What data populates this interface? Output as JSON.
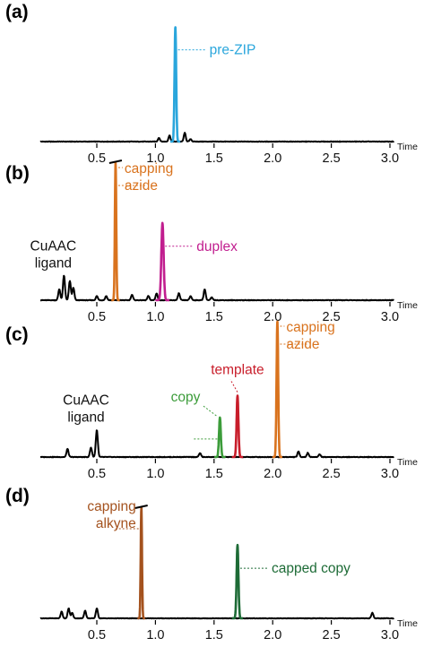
{
  "figure": {
    "x_ticks": [
      0.5,
      1.0,
      1.5,
      2.0,
      2.5,
      3.0
    ],
    "x_axis_label": "Time",
    "colors": {
      "baseline": "#000000",
      "pre_zip": "#2aa6dc",
      "capping_azide": "#d9731e",
      "duplex": "#c11e8f",
      "template": "#c81d2a",
      "copy": "#3c9c3a",
      "capping_alkyne": "#a4521e",
      "capped_copy": "#1d6b36"
    }
  },
  "chart_data": [
    {
      "type": "line",
      "panel": "(a)",
      "xlim": [
        0.0,
        3.05
      ],
      "xlabel": "Time",
      "ticks": [
        "0.5",
        "1.0",
        "1.5",
        "2.0",
        "2.5",
        "3.0"
      ],
      "ylim": [
        0,
        1
      ],
      "peaks": [
        {
          "x": 1.17,
          "height": 0.93,
          "width": 0.018,
          "color": "#2aa6dc",
          "label": "pre-ZIP",
          "label_position": "right"
        }
      ],
      "minor_peaks": [
        [
          1.03,
          0.03
        ],
        [
          1.12,
          0.05
        ],
        [
          1.25,
          0.07
        ],
        [
          1.3,
          0.02
        ]
      ]
    },
    {
      "type": "line",
      "panel": "(b)",
      "xlim": [
        0.0,
        3.05
      ],
      "xlabel": "Time",
      "ticks": [
        "0.5",
        "1.0",
        "1.5",
        "2.0",
        "2.5",
        "3.0"
      ],
      "ylim": [
        0,
        1
      ],
      "peaks": [
        {
          "x": 0.66,
          "height": 1.0,
          "width": 0.015,
          "color": "#d9731e",
          "label": "capping azide",
          "label_position": "right",
          "clipped": true
        },
        {
          "x": 1.06,
          "height": 0.56,
          "width": 0.025,
          "color": "#c11e8f",
          "label": "duplex",
          "label_position": "right"
        },
        {
          "x": 0.22,
          "height": 0.18,
          "width": 0.02,
          "color": "#000000",
          "label": "CuAAC ligand",
          "label_position": "above"
        }
      ],
      "minor_peaks": [
        [
          0.18,
          0.08
        ],
        [
          0.27,
          0.14
        ],
        [
          0.3,
          0.09
        ],
        [
          0.5,
          0.03
        ],
        [
          0.58,
          0.03
        ],
        [
          0.8,
          0.04
        ],
        [
          0.94,
          0.03
        ],
        [
          1.01,
          0.05
        ],
        [
          1.2,
          0.05
        ],
        [
          1.3,
          0.03
        ],
        [
          1.42,
          0.08
        ],
        [
          1.48,
          0.02
        ]
      ]
    },
    {
      "type": "line",
      "panel": "(c)",
      "xlim": [
        0.0,
        3.05
      ],
      "xlabel": "Time",
      "ticks": [
        "0.5",
        "1.0",
        "1.5",
        "2.0",
        "2.5",
        "3.0"
      ],
      "ylim": [
        0,
        1
      ],
      "peaks": [
        {
          "x": 0.5,
          "height": 0.2,
          "width": 0.02,
          "color": "#000000",
          "label": "CuAAC ligand",
          "label_position": "above"
        },
        {
          "x": 1.55,
          "height": 0.29,
          "width": 0.02,
          "color": "#3c9c3a",
          "label": "copy",
          "label_position": "left"
        },
        {
          "x": 1.7,
          "height": 0.45,
          "width": 0.02,
          "color": "#c81d2a",
          "label": "template",
          "label_position": "above"
        },
        {
          "x": 2.04,
          "height": 1.0,
          "width": 0.018,
          "color": "#d9731e",
          "label": "capping azide",
          "label_position": "right"
        }
      ],
      "minor_peaks": [
        [
          0.25,
          0.06
        ],
        [
          0.45,
          0.07
        ],
        [
          1.38,
          0.03
        ],
        [
          2.22,
          0.04
        ],
        [
          2.3,
          0.03
        ],
        [
          2.4,
          0.02
        ]
      ]
    },
    {
      "type": "line",
      "panel": "(d)",
      "xlim": [
        0.0,
        3.05
      ],
      "xlabel": "Time",
      "ticks": [
        "0.5",
        "1.0",
        "1.5",
        "2.0",
        "2.5",
        "3.0"
      ],
      "ylim": [
        0,
        1
      ],
      "peaks": [
        {
          "x": 0.88,
          "height": 1.0,
          "width": 0.014,
          "color": "#a4521e",
          "label": "capping alkyne",
          "label_position": "left",
          "clipped": true
        },
        {
          "x": 1.7,
          "height": 0.66,
          "width": 0.02,
          "color": "#1d6b36",
          "label": "capped copy",
          "label_position": "right"
        }
      ],
      "minor_peaks": [
        [
          0.2,
          0.06
        ],
        [
          0.26,
          0.09
        ],
        [
          0.29,
          0.05
        ],
        [
          0.4,
          0.07
        ],
        [
          0.5,
          0.09
        ],
        [
          2.85,
          0.05
        ]
      ]
    }
  ]
}
